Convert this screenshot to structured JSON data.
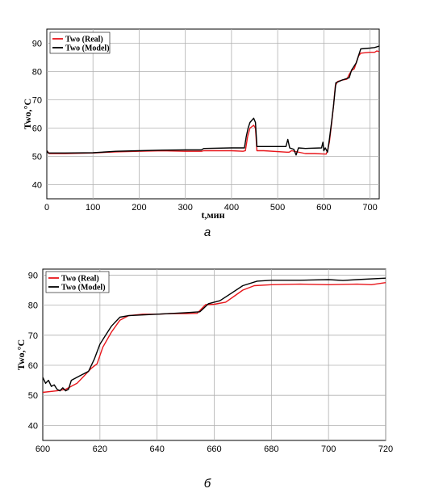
{
  "chart_data": [
    {
      "type": "line",
      "caption": "а",
      "xlabel": "t,мин",
      "ylabel": "Two,°C",
      "xlim": [
        0,
        720
      ],
      "ylim": [
        35,
        95
      ],
      "xticks": [
        0,
        100,
        200,
        300,
        400,
        500,
        600,
        700
      ],
      "yticks": [
        40,
        50,
        60,
        70,
        80,
        90
      ],
      "grid": true,
      "legend": "top-left",
      "series": [
        {
          "name": "Two (Real)",
          "color": "#e8161b",
          "points": [
            [
              0,
              52
            ],
            [
              5,
              51
            ],
            [
              40,
              51
            ],
            [
              100,
              51.2
            ],
            [
              150,
              51.6
            ],
            [
              200,
              51.8
            ],
            [
              250,
              52
            ],
            [
              300,
              51.8
            ],
            [
              335,
              51.8
            ],
            [
              340,
              52
            ],
            [
              400,
              52
            ],
            [
              425,
              51.8
            ],
            [
              430,
              52
            ],
            [
              435,
              57
            ],
            [
              440,
              60
            ],
            [
              448,
              61
            ],
            [
              452,
              60
            ],
            [
              455,
              52
            ],
            [
              470,
              52
            ],
            [
              520,
              51.5
            ],
            [
              525,
              51.5
            ],
            [
              530,
              52
            ],
            [
              560,
              51
            ],
            [
              580,
              51
            ],
            [
              605,
              50.8
            ],
            [
              608,
              52
            ],
            [
              612,
              55
            ],
            [
              617,
              62
            ],
            [
              621,
              68
            ],
            [
              625,
              75
            ],
            [
              630,
              76.5
            ],
            [
              640,
              77
            ],
            [
              650,
              77.3
            ],
            [
              655,
              79
            ],
            [
              660,
              80.3
            ],
            [
              666,
              81
            ],
            [
              670,
              83
            ],
            [
              675,
              85.5
            ],
            [
              680,
              86.5
            ],
            [
              700,
              86.8
            ],
            [
              710,
              86.8
            ],
            [
              715,
              87.3
            ],
            [
              720,
              87
            ]
          ]
        },
        {
          "name": "Two (Model)",
          "color": "#000000",
          "points": [
            [
              0,
              52
            ],
            [
              3,
              51.2
            ],
            [
              40,
              51.2
            ],
            [
              100,
              51.3
            ],
            [
              150,
              51.8
            ],
            [
              200,
              52
            ],
            [
              250,
              52.2
            ],
            [
              300,
              52.3
            ],
            [
              335,
              52.3
            ],
            [
              340,
              52.8
            ],
            [
              400,
              53
            ],
            [
              428,
              53
            ],
            [
              432,
              57
            ],
            [
              436,
              60
            ],
            [
              440,
              62
            ],
            [
              448,
              63.5
            ],
            [
              452,
              62
            ],
            [
              455,
              53.5
            ],
            [
              470,
              53.5
            ],
            [
              500,
              53.5
            ],
            [
              518,
              53.5
            ],
            [
              522,
              56
            ],
            [
              526,
              53
            ],
            [
              535,
              52.5
            ],
            [
              540,
              50.5
            ],
            [
              545,
              53
            ],
            [
              560,
              52.8
            ],
            [
              595,
              53
            ],
            [
              598,
              55
            ],
            [
              600,
              52
            ],
            [
              603,
              53
            ],
            [
              608,
              51.5
            ],
            [
              612,
              56
            ],
            [
              617,
              62.5
            ],
            [
              621,
              68
            ],
            [
              626,
              76
            ],
            [
              640,
              77
            ],
            [
              655,
              77.8
            ],
            [
              660,
              80.5
            ],
            [
              670,
              83
            ],
            [
              680,
              88
            ],
            [
              700,
              88.3
            ],
            [
              710,
              88.5
            ],
            [
              720,
              89
            ]
          ]
        }
      ]
    },
    {
      "type": "line",
      "caption": "б",
      "xlabel": "",
      "ylabel": "Two,°C",
      "xlim": [
        600,
        720
      ],
      "ylim": [
        35,
        92
      ],
      "xticks": [
        600,
        620,
        640,
        660,
        680,
        700,
        720
      ],
      "yticks": [
        40,
        50,
        60,
        70,
        80,
        90
      ],
      "grid": true,
      "legend": "top-left",
      "series": [
        {
          "name": "Two (Real)",
          "color": "#e8161b",
          "points": [
            [
              600,
              51
            ],
            [
              605,
              51.5
            ],
            [
              608,
              52
            ],
            [
              612,
              54
            ],
            [
              614,
              56
            ],
            [
              617,
              59
            ],
            [
              619,
              60.5
            ],
            [
              621,
              66
            ],
            [
              624,
              71
            ],
            [
              627,
              75
            ],
            [
              630,
              76.5
            ],
            [
              635,
              77
            ],
            [
              640,
              77
            ],
            [
              645,
              77.2
            ],
            [
              650,
              77.2
            ],
            [
              654,
              77.3
            ],
            [
              657,
              80.2
            ],
            [
              660,
              80.3
            ],
            [
              664,
              81
            ],
            [
              667,
              83
            ],
            [
              670,
              85
            ],
            [
              674,
              86.5
            ],
            [
              680,
              86.8
            ],
            [
              690,
              87
            ],
            [
              700,
              86.8
            ],
            [
              710,
              87
            ],
            [
              715,
              86.8
            ],
            [
              720,
              87.5
            ]
          ]
        },
        {
          "name": "Two (Model)",
          "color": "#000000",
          "points": [
            [
              600,
              56
            ],
            [
              601,
              54
            ],
            [
              602,
              55
            ],
            [
              603,
              53
            ],
            [
              604,
              53.5
            ],
            [
              605,
              52
            ],
            [
              606,
              51.5
            ],
            [
              607,
              52.5
            ],
            [
              608,
              51.5
            ],
            [
              609,
              52
            ],
            [
              610,
              55
            ],
            [
              613,
              56.5
            ],
            [
              616,
              58
            ],
            [
              618,
              62
            ],
            [
              620,
              67
            ],
            [
              622,
              70
            ],
            [
              624,
              73
            ],
            [
              627,
              76
            ],
            [
              630,
              76.5
            ],
            [
              640,
              77
            ],
            [
              650,
              77.5
            ],
            [
              655,
              77.8
            ],
            [
              658,
              80.5
            ],
            [
              662,
              81.5
            ],
            [
              666,
              84
            ],
            [
              670,
              86.5
            ],
            [
              675,
              88
            ],
            [
              680,
              88.3
            ],
            [
              690,
              88.3
            ],
            [
              700,
              88.5
            ],
            [
              705,
              88.2
            ],
            [
              710,
              88.5
            ],
            [
              720,
              89
            ]
          ]
        }
      ]
    }
  ]
}
